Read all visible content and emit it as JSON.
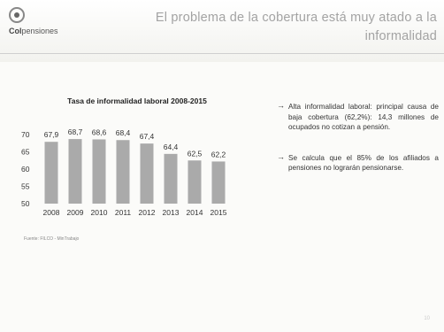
{
  "header": {
    "logo_text_bold": "Col",
    "logo_text_rest": "pensiones",
    "title": "El problema de la cobertura está muy atado a la informalidad"
  },
  "chart_data": {
    "type": "bar",
    "title": "Tasa de informalidad laboral 2008-2015",
    "categories": [
      "2008",
      "2009",
      "2010",
      "2011",
      "2012",
      "2013",
      "2014",
      "2015"
    ],
    "values": [
      67.9,
      68.7,
      68.6,
      68.4,
      67.4,
      64.4,
      62.5,
      62.2
    ],
    "value_labels": [
      "67,9",
      "68,7",
      "68,6",
      "68,4",
      "67,4",
      "64,4",
      "62,5",
      "62,2"
    ],
    "y_ticks": [
      "70",
      "65",
      "60",
      "55",
      "50"
    ],
    "ylim": [
      50,
      70
    ],
    "xlabel": "",
    "ylabel": "",
    "grid": false,
    "bar_color": "#aaaaaa"
  },
  "source": "Fuente: FILCO - MinTrabajo",
  "bullets": [
    "Alta informalidad laboral: principal causa de baja cobertura (62,2%): 14,3 millones de ocupados no cotizan a pensión.",
    "Se calcula que el 85% de los afiliados a pensiones no lograrán pensionarse."
  ],
  "bullet_arrow": "→",
  "page_number": "10"
}
